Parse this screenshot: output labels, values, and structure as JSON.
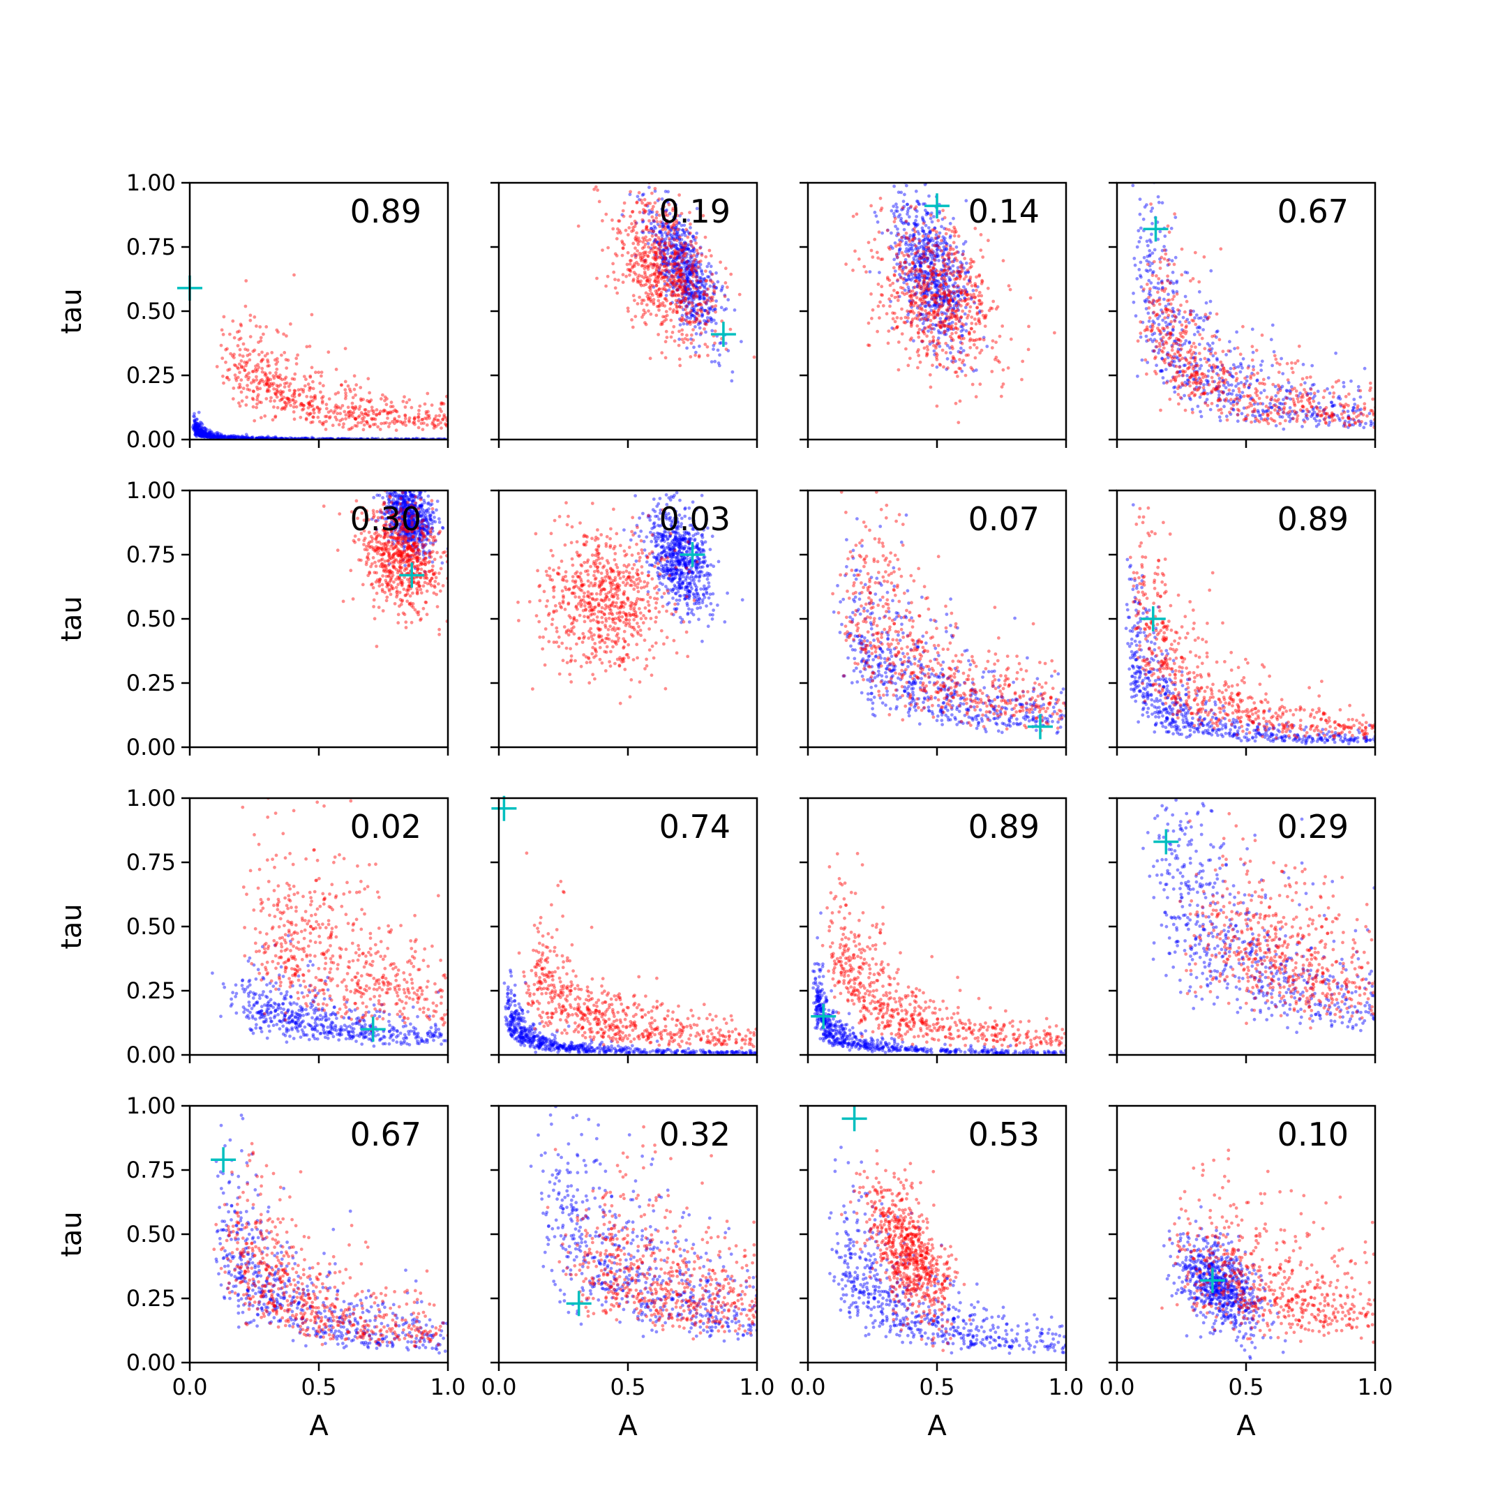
{
  "chart_data": {
    "type": "scatter",
    "layout": {
      "rows": 4,
      "cols": 4
    },
    "xlabel": "A",
    "ylabel": "tau",
    "xlim": [
      0,
      1
    ],
    "ylim": [
      0,
      1
    ],
    "xticks": [
      "0.0",
      "0.5",
      "1.0"
    ],
    "yticks": [
      "0.00",
      "0.25",
      "0.50",
      "0.75",
      "1.00"
    ],
    "colors": {
      "series_red": "#ff0000",
      "series_blue": "#0000ff",
      "marker": "#00bfbf"
    },
    "panels": [
      {
        "label": "0.89",
        "marker": [
          0.0,
          0.59
        ],
        "red": {
          "shape": "decay",
          "a": 0.2,
          "b": 0.35
        },
        "blue": {
          "shape": "decay",
          "a": 0.02,
          "b": 0.06
        }
      },
      {
        "label": "0.19",
        "marker": [
          0.87,
          0.41
        ],
        "red": {
          "shape": "cluster",
          "cx": 0.65,
          "cy": 0.65,
          "sx": 0.1,
          "sy": 0.13,
          "r": -0.4
        },
        "blue": {
          "shape": "cluster",
          "cx": 0.72,
          "cy": 0.65,
          "sx": 0.07,
          "sy": 0.13,
          "r": -0.7
        }
      },
      {
        "label": "0.14",
        "marker": [
          0.5,
          0.91
        ],
        "red": {
          "shape": "cluster",
          "cx": 0.5,
          "cy": 0.55,
          "sx": 0.12,
          "sy": 0.15,
          "r": -0.3
        },
        "blue": {
          "shape": "cluster",
          "cx": 0.48,
          "cy": 0.65,
          "sx": 0.08,
          "sy": 0.15,
          "r": -0.5
        }
      },
      {
        "label": "0.67",
        "marker": [
          0.15,
          0.82
        ],
        "red": {
          "shape": "decay",
          "a": 0.15,
          "b": 0.6
        },
        "blue": {
          "shape": "decay",
          "a": 0.1,
          "b": 0.9
        }
      },
      {
        "label": "0.30",
        "marker": [
          0.86,
          0.67
        ],
        "red": {
          "shape": "cluster",
          "cx": 0.82,
          "cy": 0.74,
          "sx": 0.08,
          "sy": 0.11,
          "r": -0.2
        },
        "blue": {
          "shape": "cluster",
          "cx": 0.85,
          "cy": 0.9,
          "sx": 0.05,
          "sy": 0.07,
          "r": -0.3
        }
      },
      {
        "label": "0.03",
        "marker": [
          0.75,
          0.75
        ],
        "red": {
          "shape": "cluster",
          "cx": 0.42,
          "cy": 0.57,
          "sx": 0.13,
          "sy": 0.14,
          "r": 0.0
        },
        "blue": {
          "shape": "cluster",
          "cx": 0.7,
          "cy": 0.74,
          "sx": 0.06,
          "sy": 0.1,
          "r": -0.4
        }
      },
      {
        "label": "0.07",
        "marker": [
          0.9,
          0.08
        ],
        "red": {
          "shape": "decay",
          "a": 0.2,
          "b": 0.7
        },
        "blue": {
          "shape": "decay",
          "a": 0.2,
          "b": 0.55
        }
      },
      {
        "label": "0.89",
        "marker": [
          0.14,
          0.5
        ],
        "red": {
          "shape": "decay",
          "a": 0.1,
          "b": 0.7
        },
        "blue": {
          "shape": "decay",
          "a": 0.06,
          "b": 0.5
        }
      },
      {
        "label": "0.02",
        "marker": [
          0.71,
          0.1
        ],
        "red": {
          "shape": "decay",
          "a": 0.35,
          "b": 0.6
        },
        "blue": {
          "shape": "decay",
          "a": 0.25,
          "b": 0.25
        }
      },
      {
        "label": "0.74",
        "marker": [
          0.02,
          0.96
        ],
        "red": {
          "shape": "decay",
          "a": 0.15,
          "b": 0.4
        },
        "blue": {
          "shape": "decay",
          "a": 0.04,
          "b": 0.2
        }
      },
      {
        "label": "0.89",
        "marker": [
          0.06,
          0.15
        ],
        "red": {
          "shape": "decay",
          "a": 0.12,
          "b": 0.5
        },
        "blue": {
          "shape": "decay",
          "a": 0.03,
          "b": 0.3
        }
      },
      {
        "label": "0.29",
        "marker": [
          0.19,
          0.83
        ],
        "red": {
          "shape": "decay",
          "a": 0.45,
          "b": 0.55
        },
        "blue": {
          "shape": "decay",
          "a": 0.2,
          "b": 0.9
        }
      },
      {
        "label": "0.67",
        "marker": [
          0.13,
          0.79
        ],
        "red": {
          "shape": "decay",
          "a": 0.2,
          "b": 0.55
        },
        "blue": {
          "shape": "decay",
          "a": 0.15,
          "b": 0.6
        }
      },
      {
        "label": "0.32",
        "marker": [
          0.31,
          0.23
        ],
        "red": {
          "shape": "decay",
          "a": 0.4,
          "b": 0.5
        },
        "blue": {
          "shape": "decay",
          "a": 0.25,
          "b": 0.7
        }
      },
      {
        "label": "0.53",
        "marker": [
          0.18,
          0.95
        ],
        "red": {
          "shape": "cluster",
          "cx": 0.4,
          "cy": 0.42,
          "sx": 0.08,
          "sy": 0.13,
          "r": -0.6
        },
        "blue": {
          "shape": "decay",
          "a": 0.15,
          "b": 0.5
        }
      },
      {
        "label": "0.10",
        "marker": [
          0.37,
          0.32
        ],
        "red": {
          "shape": "decay",
          "a": 0.35,
          "b": 0.5
        },
        "blue": {
          "shape": "cluster",
          "cx": 0.4,
          "cy": 0.3,
          "sx": 0.08,
          "sy": 0.09,
          "r": -0.5
        }
      }
    ]
  }
}
